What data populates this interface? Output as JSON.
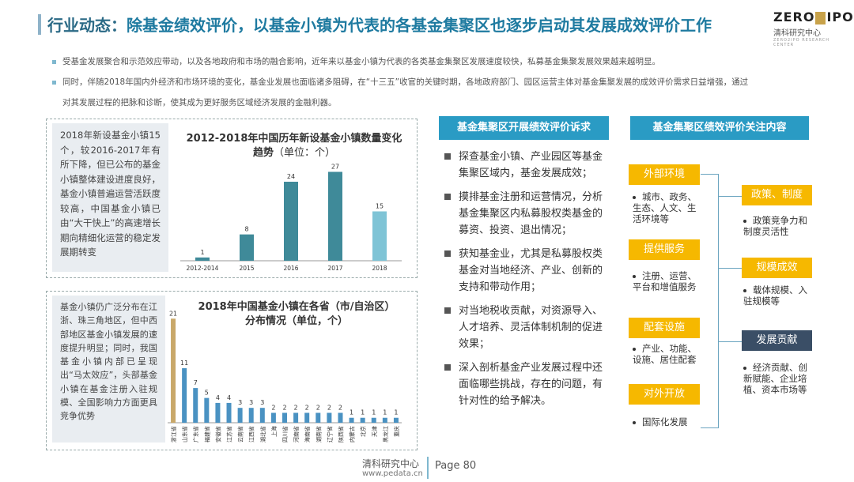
{
  "header": {
    "prefix": "行业动态：",
    "title": "除基金绩效评价，以基金小镇为代表的各基金集聚区也逐步启动其发展成效评价工作",
    "logo_left": "ZERO",
    "logo_right": "IPO",
    "logo_cn": "清科研究中心",
    "logo_en": "ZERO2IPO RESEARCH CENTER"
  },
  "intro": [
    "受基金发展聚合和示范效应带动，以及各地政府和市场的融合影响，近年来以基金小镇为代表的各类基金集聚区发展速度较快，私募基金集聚发展效果越来越明显。",
    "同时，伴随2018年国内外经济和市场环境的变化，基金业发展也面临诸多阻碍，在“十三五”收官的关键时期，各地政府部门、园区运营主体对基金集聚发展的成效评价需求日益增强，通过",
    "对其发展过程的把脉和诊断，使其成为更好服务区域经济发展的金融利器。"
  ],
  "chart1_note": "2018年新设基金小镇15个，较2016-2017年有所下降，但已公布的基金小镇整体建设进度良好，基金小镇普遍运营活跃度较高，中国基金小镇已由“大干快上”的高速增长期向精细化运营的稳定发展期转变",
  "chart2_note": "基金小镇仍广泛分布在江浙、珠三角地区，但中西部地区基金小镇发展的速度提升明显；同时，我国基金小镇内部已呈现出“马太效应”，头部基金小镇在基金注册入驻规模、全国影响力方面更具竞争优势",
  "chart_data": [
    {
      "type": "bar",
      "title": "2012-2018年中国历年新设基金小镇数量变化趋势",
      "title_unit": "（单位：个）",
      "categories": [
        "2012-2014",
        "2015",
        "2016",
        "2017",
        "2018"
      ],
      "values": [
        1,
        8,
        24,
        27,
        15
      ],
      "colors": [
        "#3f8a99",
        "#3f8a99",
        "#3f8a99",
        "#3f8a99",
        "#7fc4d6"
      ],
      "ylim": [
        0,
        30
      ]
    },
    {
      "type": "bar",
      "title": "2018年中国基金小镇在各省（市/自治区）分布情况（单位，个）",
      "categories": [
        "浙江省",
        "山东省",
        "广东省",
        "福建省",
        "安徽省",
        "江苏省",
        "云南省",
        "江西省",
        "湖北省",
        "上海",
        "四川省",
        "河南省",
        "海南省",
        "湖南省",
        "辽宁省",
        "陕西省",
        "内蒙古",
        "北京",
        "天津",
        "黑龙江",
        "重庆"
      ],
      "values": [
        21,
        11,
        7,
        5,
        4,
        4,
        3,
        3,
        3,
        2,
        2,
        2,
        2,
        2,
        2,
        2,
        1,
        1,
        1,
        1,
        1
      ],
      "colors": [
        "#c9a86a",
        "#4a92c2"
      ],
      "ylim": [
        0,
        22
      ]
    }
  ],
  "right": {
    "left_head": "基金集聚区开展绩效评价诉求",
    "right_head": "基金集聚区绩效评价关注内容",
    "requests": [
      "探查基金小镇、产业园区等基金集聚区域内，基金发展成效；",
      "摸排基金注册和运营情况，分析基金集聚区内私募股权类基金的募资、投资、退出情况；",
      "获知基金业，尤其是私募股权类基金对当地经济、产业、创新的支持和带动作用；",
      "对当地税收贡献，对资源导入、人才培养、灵活体制机制的促进效果；",
      "深入剖析基金产业发展过程中还面临哪些挑战，存在的问题，有针对性的给予解决。"
    ],
    "left_tags": [
      {
        "label": "外部环境",
        "desc": "城市、政务、生态、人文、生活环境等"
      },
      {
        "label": "提供服务",
        "desc": "注册、运营、平台和增值服务"
      },
      {
        "label": "配套设施",
        "desc": "产业、功能、设施、居住配套"
      },
      {
        "label": "对外开放",
        "desc": "国际化发展"
      }
    ],
    "right_tags": [
      {
        "label": "政策、制度",
        "desc": "政策竞争力和制度灵活性"
      },
      {
        "label": "规模成效",
        "desc": "载体规模、入驻规模等"
      },
      {
        "label": "发展贡献",
        "desc": "经济贡献、创新赋能、企业培植、资本市场等"
      }
    ]
  },
  "footer": {
    "name": "清科研究中心",
    "url": "www.pedata.cn",
    "page": "Page 80"
  }
}
